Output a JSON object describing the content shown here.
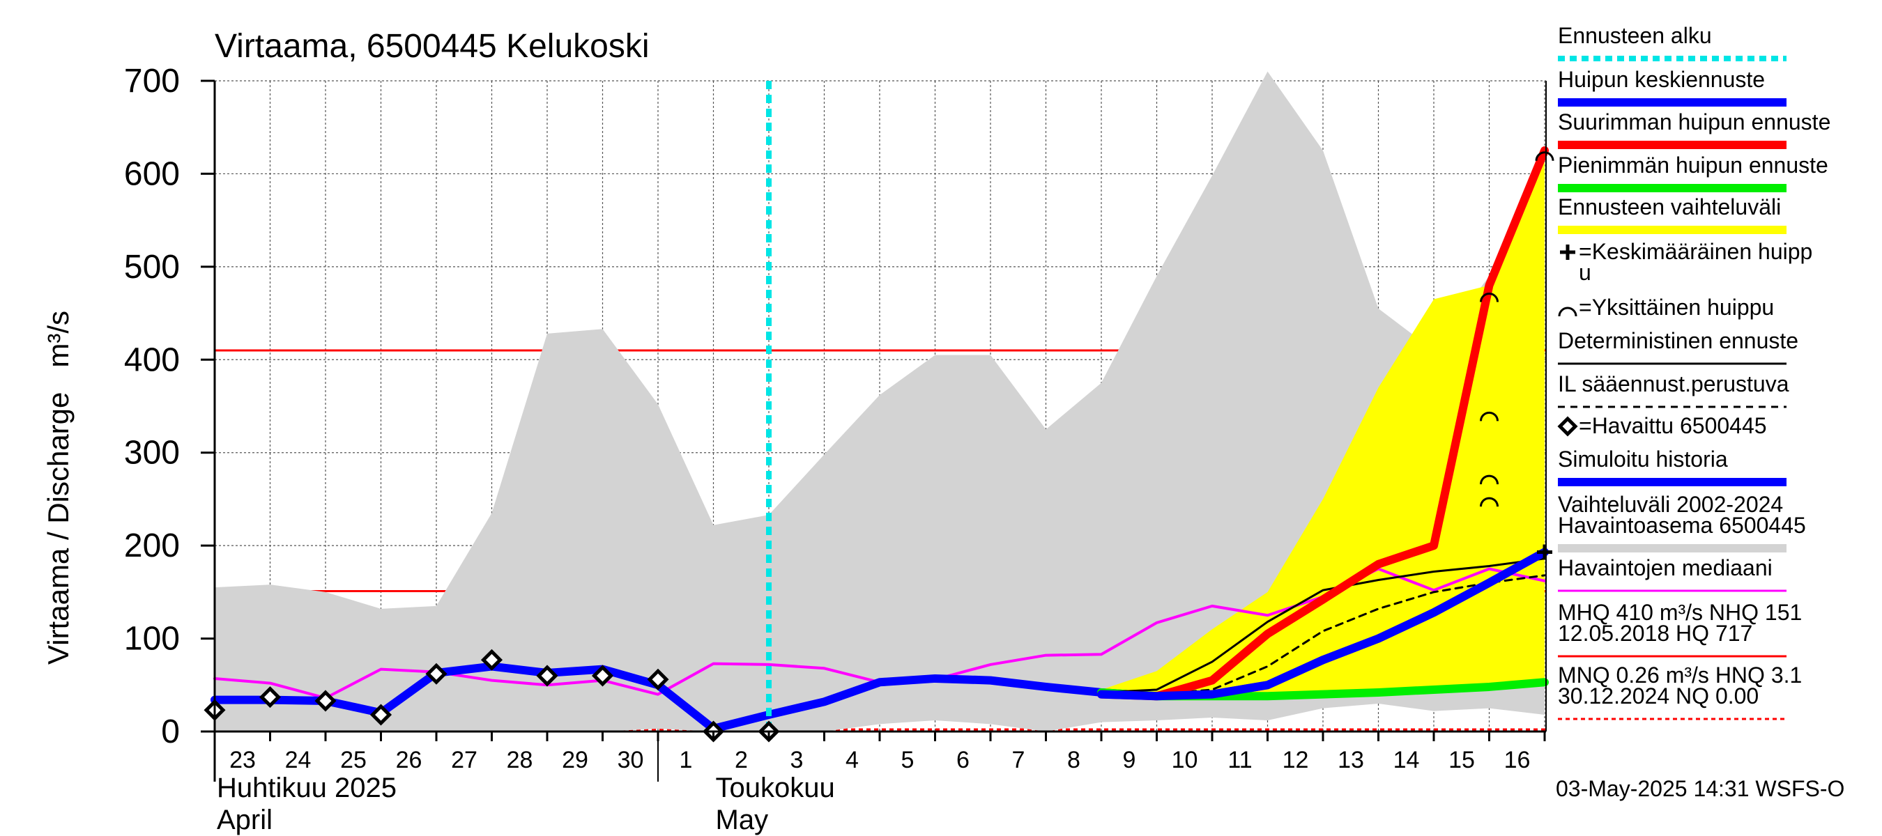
{
  "chart_data": {
    "type": "line",
    "title": "Virtaama, 6500445 Kelukoski",
    "ylabel": "Virtaama / Discharge   m³/s",
    "ylim": [
      0,
      700
    ],
    "yticks": [
      0,
      100,
      200,
      300,
      400,
      500,
      600,
      700
    ],
    "grid": true,
    "x_day_labels": [
      "23",
      "24",
      "25",
      "26",
      "27",
      "28",
      "29",
      "30",
      "1",
      "2",
      "3",
      "4",
      "5",
      "6",
      "7",
      "8",
      "9",
      "10",
      "11",
      "12",
      "13",
      "14",
      "15",
      "16"
    ],
    "month_labels": [
      {
        "fi": "Huhtikuu  2025",
        "en": "April",
        "day_index": 0
      },
      {
        "fi": "Toukokuu",
        "en": "May",
        "day_index": 9
      }
    ],
    "forecast_start_x": 10,
    "reference_lines": {
      "MHQ": 410,
      "NHQ": 151,
      "MNQ": 0.26,
      "NQ": 0.0
    },
    "series": [
      {
        "name": "Vaihteluväli 2002-2024",
        "kind": "band",
        "color": "#d3d3d3",
        "upper": [
          [
            0,
            155
          ],
          [
            1,
            158
          ],
          [
            2,
            150
          ],
          [
            3,
            132
          ],
          [
            4,
            135
          ],
          [
            5,
            235
          ],
          [
            6,
            428
          ],
          [
            7,
            433
          ],
          [
            8,
            352
          ],
          [
            9,
            222
          ],
          [
            10,
            233
          ],
          [
            11,
            298
          ],
          [
            12,
            362
          ],
          [
            13,
            405
          ],
          [
            14,
            405
          ],
          [
            15,
            325
          ],
          [
            16,
            375
          ],
          [
            17,
            490
          ],
          [
            18,
            598
          ],
          [
            19,
            710
          ],
          [
            20,
            625
          ],
          [
            21,
            455
          ],
          [
            22,
            410
          ],
          [
            23,
            490
          ],
          [
            24,
            530
          ]
        ],
        "lower": [
          [
            0,
            0
          ],
          [
            1,
            0
          ],
          [
            2,
            0
          ],
          [
            3,
            0
          ],
          [
            4,
            0
          ],
          [
            5,
            0
          ],
          [
            6,
            0
          ],
          [
            7,
            0
          ],
          [
            8,
            3
          ],
          [
            9,
            0
          ],
          [
            10,
            0
          ],
          [
            11,
            0
          ],
          [
            12,
            8
          ],
          [
            13,
            12
          ],
          [
            14,
            8
          ],
          [
            15,
            0
          ],
          [
            16,
            10
          ],
          [
            17,
            12
          ],
          [
            18,
            15
          ],
          [
            19,
            12
          ],
          [
            20,
            25
          ],
          [
            21,
            30
          ],
          [
            22,
            22
          ],
          [
            23,
            25
          ],
          [
            24,
            18
          ]
        ]
      },
      {
        "name": "Ennusteen vaihteluväli",
        "kind": "band",
        "color": "#ffff00",
        "upper": [
          [
            16,
            45
          ],
          [
            17,
            65
          ],
          [
            18,
            110
          ],
          [
            19,
            150
          ],
          [
            20,
            250
          ],
          [
            21,
            370
          ],
          [
            22,
            465
          ],
          [
            23,
            480
          ],
          [
            24,
            625
          ]
        ],
        "lower": [
          [
            16,
            40
          ],
          [
            17,
            38
          ],
          [
            18,
            38
          ],
          [
            19,
            38
          ],
          [
            20,
            38
          ],
          [
            21,
            40
          ],
          [
            22,
            42
          ],
          [
            23,
            45
          ],
          [
            24,
            50
          ]
        ]
      },
      {
        "name": "Havaintojen mediaani",
        "kind": "line",
        "color": "#ff00ff",
        "width": 4,
        "points": [
          [
            0,
            57
          ],
          [
            1,
            52
          ],
          [
            2,
            36
          ],
          [
            3,
            67
          ],
          [
            4,
            64
          ],
          [
            5,
            55
          ],
          [
            6,
            50
          ],
          [
            7,
            55
          ],
          [
            8,
            40
          ],
          [
            9,
            73
          ],
          [
            10,
            72
          ],
          [
            11,
            68
          ],
          [
            12,
            53
          ],
          [
            13,
            56
          ],
          [
            14,
            72
          ],
          [
            15,
            82
          ],
          [
            16,
            83
          ],
          [
            17,
            117
          ],
          [
            18,
            135
          ],
          [
            19,
            125
          ],
          [
            20,
            145
          ],
          [
            21,
            175
          ],
          [
            22,
            152
          ],
          [
            23,
            175
          ],
          [
            24,
            162
          ]
        ]
      },
      {
        "name": "Simuloitu historia",
        "kind": "line",
        "color": "#0000ff",
        "width": 12,
        "points": [
          [
            0,
            34
          ],
          [
            1,
            34
          ],
          [
            2,
            33
          ],
          [
            3,
            20
          ],
          [
            4,
            63
          ],
          [
            5,
            70
          ],
          [
            6,
            63
          ],
          [
            7,
            67
          ],
          [
            8,
            50
          ],
          [
            9,
            3
          ],
          [
            10,
            18
          ],
          [
            11,
            32
          ],
          [
            12,
            53
          ],
          [
            13,
            57
          ],
          [
            14,
            55
          ],
          [
            15,
            48
          ],
          [
            16,
            42
          ],
          [
            17,
            38
          ],
          [
            18,
            40
          ],
          [
            19,
            50
          ],
          [
            20,
            77
          ],
          [
            21,
            100
          ],
          [
            22,
            128
          ],
          [
            23,
            160
          ],
          [
            24,
            193
          ]
        ]
      },
      {
        "name": "Pienimmän huipun ennuste",
        "kind": "line",
        "color": "#00ee00",
        "width": 12,
        "points": [
          [
            16,
            42
          ],
          [
            17,
            38
          ],
          [
            18,
            38
          ],
          [
            19,
            38
          ],
          [
            20,
            40
          ],
          [
            21,
            42
          ],
          [
            22,
            45
          ],
          [
            23,
            48
          ],
          [
            24,
            53
          ]
        ]
      },
      {
        "name": "Deterministinen ennuste",
        "kind": "line",
        "color": "#000000",
        "width": 3,
        "points": [
          [
            16,
            42
          ],
          [
            17,
            45
          ],
          [
            18,
            75
          ],
          [
            19,
            118
          ],
          [
            20,
            152
          ],
          [
            21,
            163
          ],
          [
            22,
            172
          ],
          [
            23,
            178
          ],
          [
            24,
            186
          ]
        ]
      },
      {
        "name": "IL sääennust.perustuva",
        "kind": "line",
        "color": "#000000",
        "width": 3,
        "dash": "10,8",
        "points": [
          [
            16,
            40
          ],
          [
            17,
            40
          ],
          [
            18,
            45
          ],
          [
            19,
            70
          ],
          [
            20,
            108
          ],
          [
            21,
            132
          ],
          [
            22,
            150
          ],
          [
            23,
            160
          ],
          [
            24,
            168
          ]
        ]
      },
      {
        "name": "Suurimman huipun ennuste",
        "kind": "line",
        "color": "#ff0000",
        "width": 12,
        "points": [
          [
            16,
            40
          ],
          [
            17,
            38
          ],
          [
            18,
            55
          ],
          [
            19,
            105
          ],
          [
            20,
            142
          ],
          [
            21,
            180
          ],
          [
            22,
            200
          ],
          [
            23,
            480
          ],
          [
            24,
            625
          ]
        ]
      },
      {
        "name": "Huipun keskiennuste",
        "kind": "line",
        "color": "#0000ff",
        "width": 12,
        "points": [
          [
            16,
            40
          ],
          [
            17,
            38
          ],
          [
            18,
            40
          ],
          [
            19,
            50
          ],
          [
            20,
            77
          ],
          [
            21,
            100
          ],
          [
            22,
            128
          ],
          [
            23,
            160
          ],
          [
            24,
            193
          ]
        ]
      },
      {
        "name": "Havaittu 6500445",
        "kind": "markers",
        "marker": "diamond",
        "color": "#000000",
        "points": [
          [
            0,
            23
          ],
          [
            1,
            37
          ],
          [
            2,
            33
          ],
          [
            3,
            18
          ],
          [
            4,
            62
          ],
          [
            5,
            77
          ],
          [
            6,
            60
          ],
          [
            7,
            60
          ],
          [
            8,
            56
          ],
          [
            9,
            0
          ],
          [
            10,
            0
          ]
        ]
      }
    ],
    "single_peaks": [
      [
        23,
        468
      ],
      [
        23,
        340
      ],
      [
        23,
        272
      ],
      [
        23,
        248
      ],
      [
        24,
        620
      ]
    ],
    "mean_peak": [
      24,
      193
    ],
    "legend_position": "right",
    "legend": [
      {
        "label": "Ennusteen alku",
        "color": "#00e5e5",
        "style": "dotted"
      },
      {
        "label": "Huipun keskiennuste",
        "color": "#0000ff",
        "style": "solid"
      },
      {
        "label": "Suurimman huipun ennuste",
        "color": "#ff0000",
        "style": "solid"
      },
      {
        "label": "Pienimmän huipun ennuste",
        "color": "#00ee00",
        "style": "solid"
      },
      {
        "label": "Ennusteen vaihteluväli",
        "color": "#ffff00",
        "style": "solid"
      },
      {
        "label": "=Keskimääräinen huipp\nu",
        "color": "",
        "style": "none",
        "icon": "plus"
      },
      {
        "label": "=Yksittäinen huippu",
        "color": "",
        "style": "none",
        "icon": "arc"
      },
      {
        "label": "Deterministinen ennuste",
        "color": "#000000",
        "style": "thin"
      },
      {
        "label": "IL sääennust.perustuva",
        "color": "#000000",
        "style": "dashed"
      },
      {
        "label": "=Havaittu 6500445",
        "color": "",
        "style": "none",
        "icon": "diamond"
      },
      {
        "label": "Simuloitu historia",
        "color": "#0000ff",
        "style": "solid"
      },
      {
        "label": "Vaihteluväli 2002-2024\n Havaintoasema 6500445",
        "color": "#d3d3d3",
        "style": "solid"
      },
      {
        "label": "Havaintojen mediaani",
        "color": "#ff00ff",
        "style": "thin"
      },
      {
        "label": "MHQ  410 m³/s NHQ  151\n12.05.2018 HQ  717",
        "color": "#ff0000",
        "style": "thin"
      },
      {
        "label": "MNQ 0.26 m³/s HNQ  3.1\n30.12.2024 NQ 0.00",
        "color": "#ff0000",
        "style": "dotted-red"
      }
    ],
    "footer": "03-May-2025 14:31 WSFS-O"
  }
}
